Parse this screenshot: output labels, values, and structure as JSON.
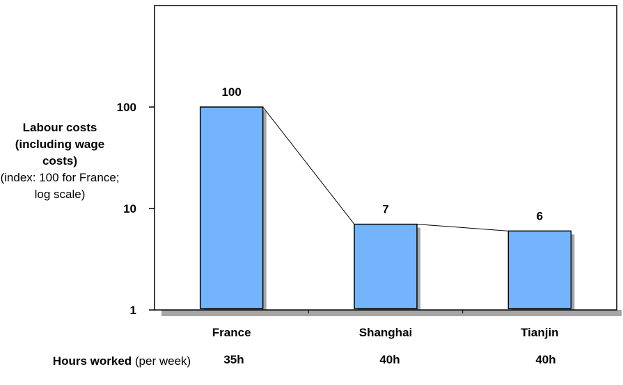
{
  "chart_data": {
    "type": "bar",
    "categories": [
      "France",
      "Shanghai",
      "Tianjin"
    ],
    "values": [
      100,
      7,
      6
    ],
    "value_labels": [
      "100",
      "7",
      "6"
    ],
    "yscale": "log",
    "ylim": [
      1,
      1000
    ],
    "yticks": [
      1,
      10,
      100
    ],
    "ytick_labels": [
      "1",
      "10",
      "100"
    ],
    "ylabel_main": "Labour costs (including wage costs)",
    "ylabel_note": "(index: 100 for France; log scale)",
    "connector_line": true,
    "grid": false,
    "bar_color": "#73b4fc",
    "shadow_color": "#a6a6a6"
  },
  "hours": {
    "label_main": "Hours worked",
    "label_note": "(per week)",
    "values": [
      "35h",
      "40h",
      "40h"
    ]
  }
}
